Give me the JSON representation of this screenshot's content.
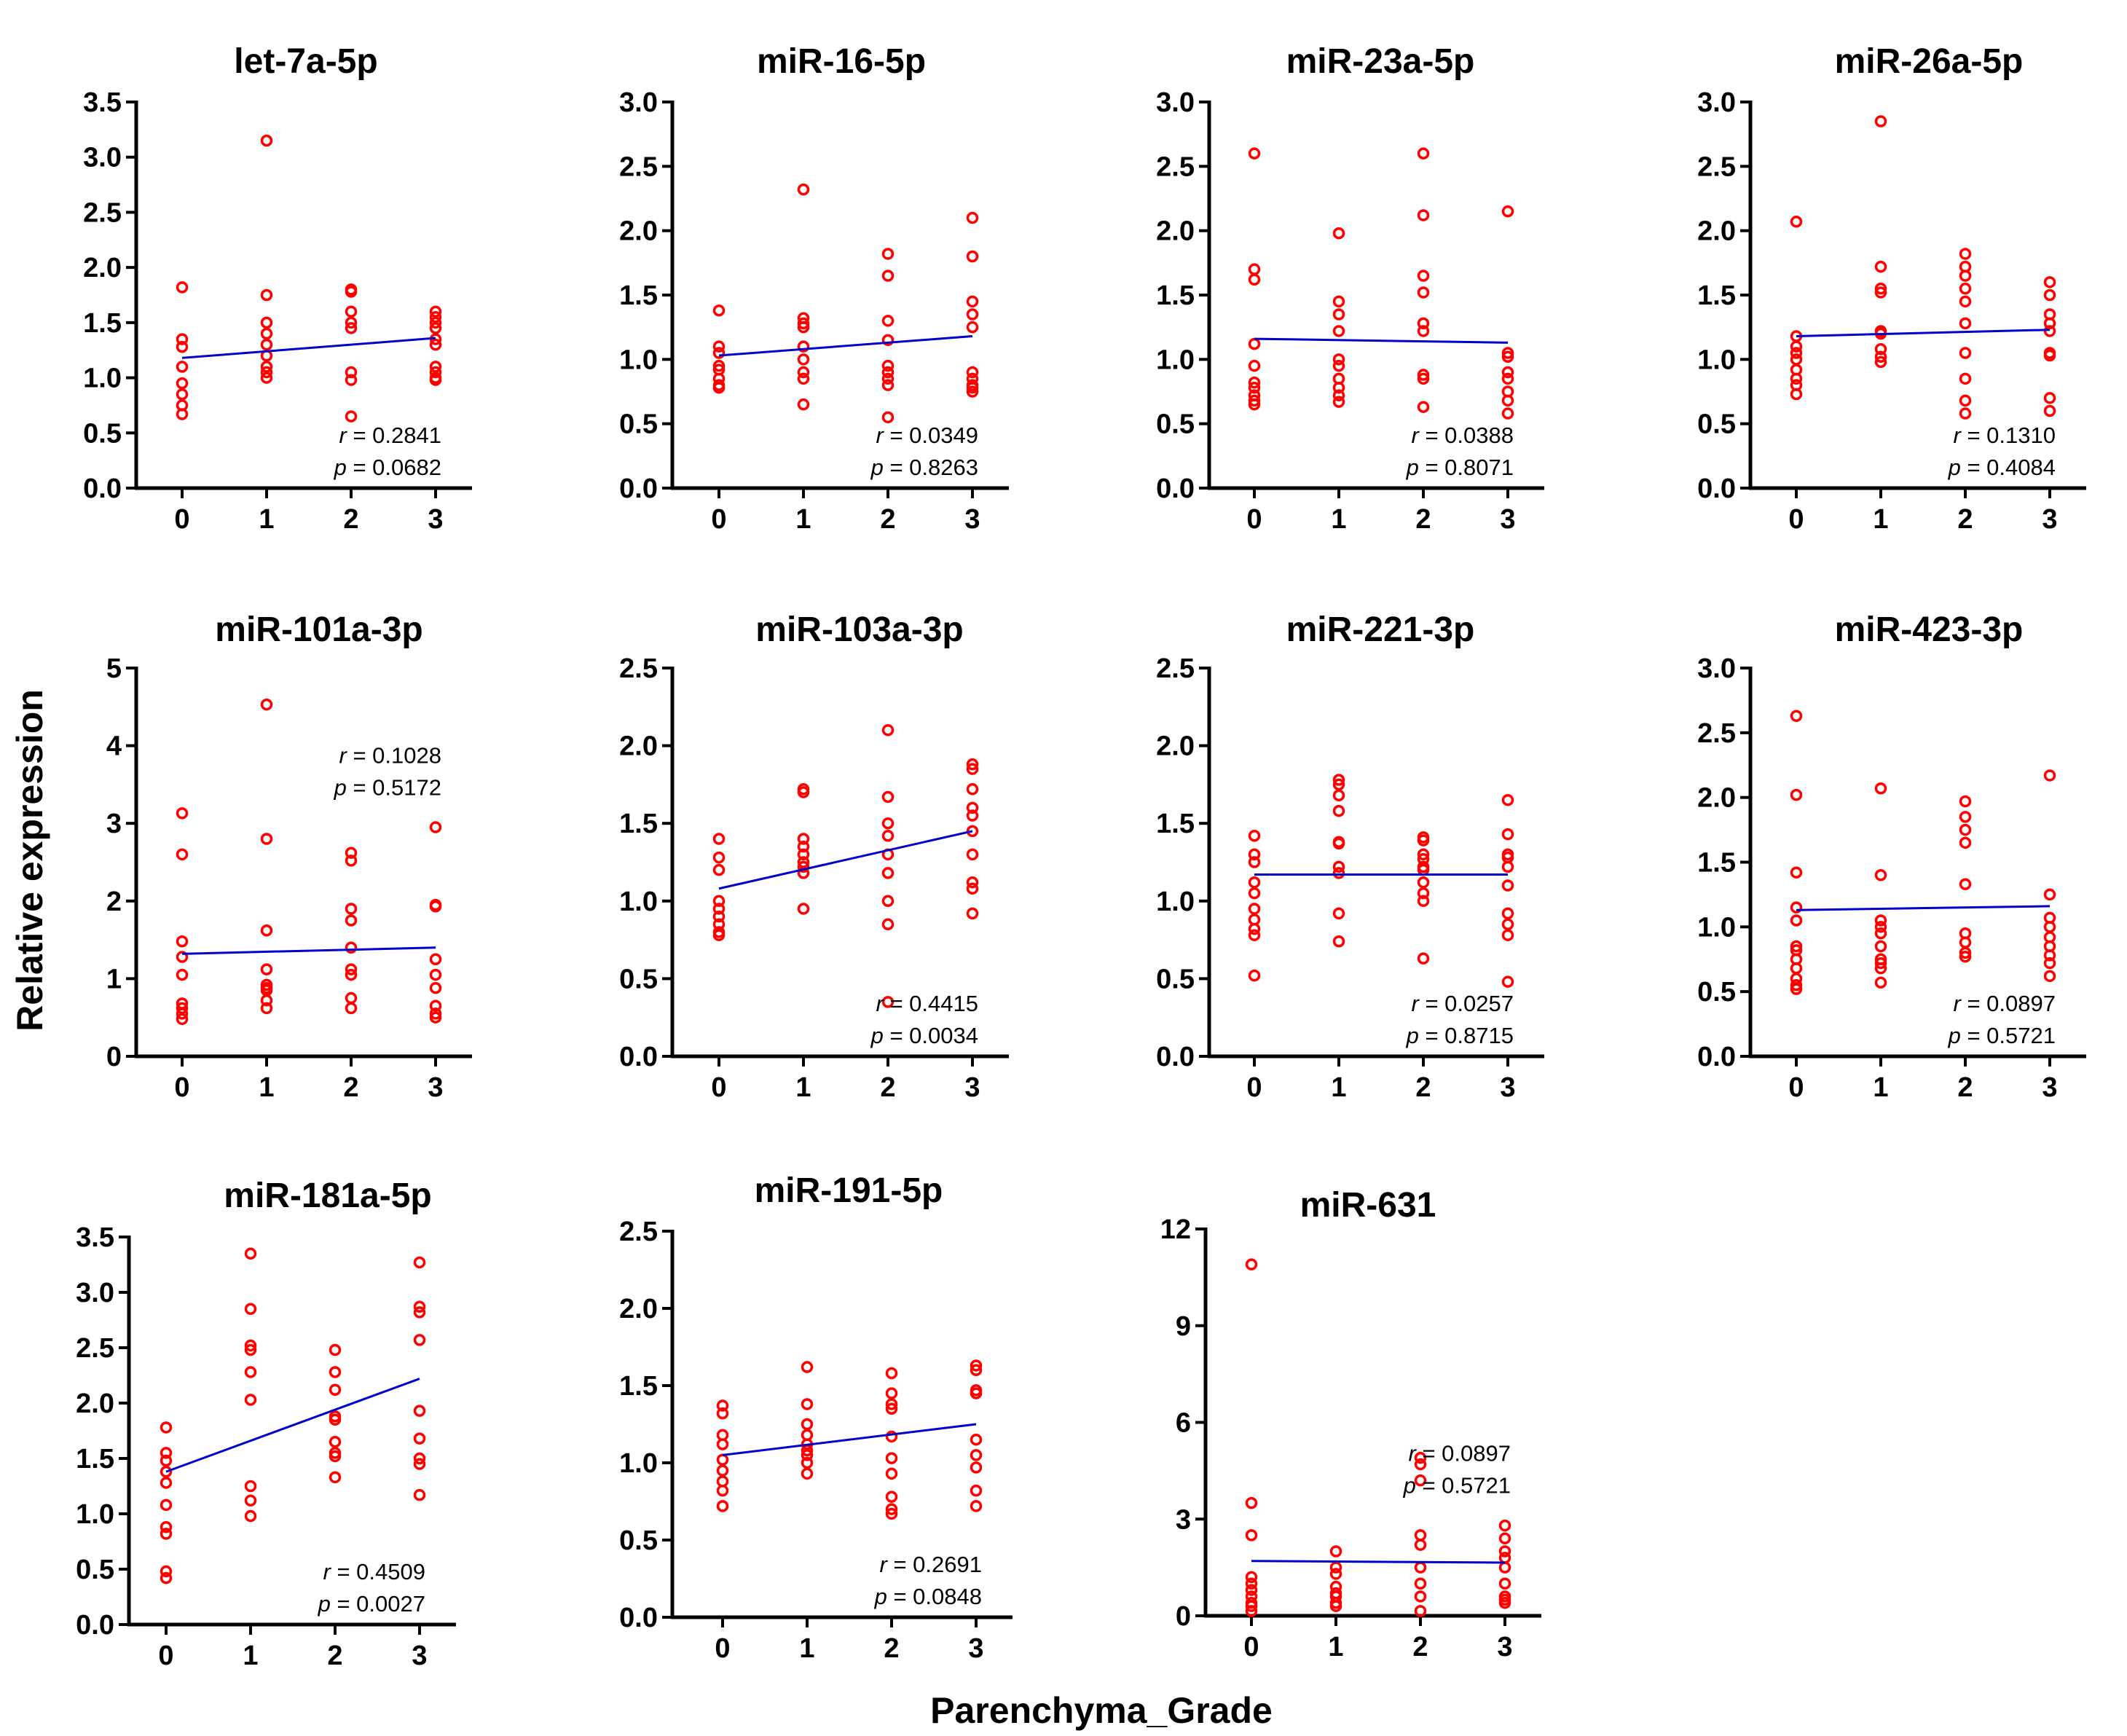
{
  "figure": {
    "xlabel": "Parenchyma_Grade",
    "ylabel": "Relative expression",
    "point_color": "#ff0000",
    "line_color": "#0000cc"
  },
  "chart_data": [
    {
      "type": "scatter",
      "title": "let-7a-5p",
      "categories": [
        "0",
        "1",
        "2",
        "3"
      ],
      "ylim": [
        0,
        3.5
      ],
      "yticks": [
        "0.0",
        "0.5",
        "1.0",
        "1.5",
        "2.0",
        "2.5",
        "3.0",
        "3.5"
      ],
      "r_label": "r",
      "r_value": "= 0.2841",
      "p_label": "p",
      "p_value": "= 0.0682",
      "stat_pos": "bottom-right",
      "fit": [
        1.18,
        1.36
      ],
      "series": [
        {
          "x": 0,
          "y": [
            1.82,
            1.35,
            1.28,
            1.1,
            0.95,
            0.85,
            0.75,
            0.67
          ]
        },
        {
          "x": 1,
          "y": [
            3.15,
            1.75,
            1.5,
            1.4,
            1.3,
            1.2,
            1.1,
            1.05,
            1.0
          ]
        },
        {
          "x": 2,
          "y": [
            1.8,
            1.78,
            1.6,
            1.5,
            1.45,
            1.05,
            0.98,
            0.65
          ]
        },
        {
          "x": 3,
          "y": [
            1.6,
            1.55,
            1.5,
            1.45,
            1.35,
            1.3,
            1.1,
            1.05,
            1.0,
            0.98
          ]
        }
      ]
    },
    {
      "type": "scatter",
      "title": "miR-16-5p",
      "categories": [
        "0",
        "1",
        "2",
        "3"
      ],
      "ylim": [
        0,
        3.0
      ],
      "yticks": [
        "0.0",
        "0.5",
        "1.0",
        "1.5",
        "2.0",
        "2.5",
        "3.0"
      ],
      "r_label": "r",
      "r_value": "= 0.0349",
      "p_label": "p",
      "p_value": "= 0.8263",
      "stat_pos": "bottom-right",
      "fit": [
        1.03,
        1.18
      ],
      "series": [
        {
          "x": 0,
          "y": [
            1.38,
            1.1,
            1.05,
            0.95,
            0.92,
            0.85,
            0.8,
            0.78
          ]
        },
        {
          "x": 1,
          "y": [
            2.32,
            1.32,
            1.28,
            1.25,
            1.1,
            1.0,
            0.9,
            0.85,
            0.65
          ]
        },
        {
          "x": 2,
          "y": [
            1.82,
            1.65,
            1.3,
            1.15,
            0.95,
            0.9,
            0.85,
            0.8,
            0.55
          ]
        },
        {
          "x": 3,
          "y": [
            2.1,
            1.8,
            1.45,
            1.35,
            1.25,
            0.9,
            0.85,
            0.8,
            0.78,
            0.75
          ]
        }
      ]
    },
    {
      "type": "scatter",
      "title": "miR-23a-5p",
      "categories": [
        "0",
        "1",
        "2",
        "3"
      ],
      "ylim": [
        0,
        3.0
      ],
      "yticks": [
        "0.0",
        "0.5",
        "1.0",
        "1.5",
        "2.0",
        "2.5",
        "3.0"
      ],
      "r_label": "r",
      "r_value": "= 0.0388",
      "p_label": "p",
      "p_value": "= 0.8071",
      "stat_pos": "bottom-right",
      "fit": [
        1.16,
        1.13
      ],
      "series": [
        {
          "x": 0,
          "y": [
            2.6,
            1.7,
            1.62,
            1.12,
            0.95,
            0.82,
            0.78,
            0.72,
            0.68,
            0.65
          ]
        },
        {
          "x": 1,
          "y": [
            1.98,
            1.45,
            1.35,
            1.22,
            1.0,
            0.95,
            0.85,
            0.78,
            0.72,
            0.67
          ]
        },
        {
          "x": 2,
          "y": [
            2.6,
            2.12,
            1.65,
            1.52,
            1.28,
            1.22,
            0.88,
            0.85,
            0.63
          ]
        },
        {
          "x": 3,
          "y": [
            2.15,
            1.05,
            1.02,
            0.9,
            0.85,
            0.75,
            0.68,
            0.58
          ]
        }
      ]
    },
    {
      "type": "scatter",
      "title": "miR-26a-5p",
      "categories": [
        "0",
        "1",
        "2",
        "3"
      ],
      "ylim": [
        0,
        3.0
      ],
      "yticks": [
        "0.0",
        "0.5",
        "1.0",
        "1.5",
        "2.0",
        "2.5",
        "3.0"
      ],
      "r_label": "r",
      "r_value": "= 0.1310",
      "p_label": "p",
      "p_value": "= 0.4084",
      "stat_pos": "bottom-right",
      "fit": [
        1.18,
        1.23
      ],
      "series": [
        {
          "x": 0,
          "y": [
            2.07,
            1.18,
            1.1,
            1.05,
            1.0,
            0.92,
            0.85,
            0.8,
            0.73
          ]
        },
        {
          "x": 1,
          "y": [
            2.85,
            1.72,
            1.55,
            1.52,
            1.22,
            1.2,
            1.08,
            1.02,
            0.98
          ]
        },
        {
          "x": 2,
          "y": [
            1.82,
            1.72,
            1.65,
            1.55,
            1.45,
            1.28,
            1.05,
            0.85,
            0.68,
            0.58
          ]
        },
        {
          "x": 3,
          "y": [
            1.6,
            1.5,
            1.35,
            1.28,
            1.22,
            1.05,
            1.03,
            0.7,
            0.6
          ]
        }
      ]
    },
    {
      "type": "scatter",
      "title": "miR-101a-3p",
      "categories": [
        "0",
        "1",
        "2",
        "3"
      ],
      "ylim": [
        0,
        5
      ],
      "yticks": [
        "0",
        "1",
        "2",
        "3",
        "4",
        "5"
      ],
      "r_label": "r",
      "r_value": "= 0.1028",
      "p_label": "p",
      "p_value": "= 0.5172",
      "stat_pos": "top-right",
      "fit": [
        1.32,
        1.4
      ],
      "series": [
        {
          "x": 0,
          "y": [
            3.13,
            2.6,
            1.48,
            1.28,
            1.05,
            0.68,
            0.62,
            0.55,
            0.48
          ]
        },
        {
          "x": 1,
          "y": [
            4.53,
            2.8,
            1.62,
            1.12,
            0.92,
            0.88,
            0.85,
            0.72,
            0.62
          ]
        },
        {
          "x": 2,
          "y": [
            2.62,
            2.52,
            1.9,
            1.75,
            1.4,
            1.12,
            1.05,
            0.75,
            0.62
          ]
        },
        {
          "x": 3,
          "y": [
            2.95,
            1.95,
            1.93,
            1.25,
            1.05,
            0.88,
            0.65,
            0.55,
            0.5
          ]
        }
      ]
    },
    {
      "type": "scatter",
      "title": "miR-103a-3p",
      "categories": [
        "0",
        "1",
        "2",
        "3"
      ],
      "ylim": [
        0,
        2.5
      ],
      "yticks": [
        "0.0",
        "0.5",
        "1.0",
        "1.5",
        "2.0",
        "2.5"
      ],
      "r_label": "r",
      "r_value": "= 0.4415",
      "p_label": "p",
      "p_value": "= 0.0034",
      "stat_pos": "bottom-right",
      "fit": [
        1.08,
        1.45
      ],
      "series": [
        {
          "x": 0,
          "y": [
            1.4,
            1.28,
            1.2,
            1.0,
            0.95,
            0.9,
            0.85,
            0.8,
            0.78
          ]
        },
        {
          "x": 1,
          "y": [
            1.72,
            1.7,
            1.4,
            1.35,
            1.3,
            1.25,
            1.22,
            1.18,
            0.95
          ]
        },
        {
          "x": 2,
          "y": [
            2.1,
            1.67,
            1.5,
            1.42,
            1.3,
            1.18,
            1.0,
            0.85,
            0.35
          ]
        },
        {
          "x": 3,
          "y": [
            1.88,
            1.85,
            1.72,
            1.6,
            1.55,
            1.45,
            1.3,
            1.12,
            1.08,
            0.92
          ]
        }
      ]
    },
    {
      "type": "scatter",
      "title": "miR-221-3p",
      "categories": [
        "0",
        "1",
        "2",
        "3"
      ],
      "ylim": [
        0,
        2.5
      ],
      "yticks": [
        "0.0",
        "0.5",
        "1.0",
        "1.5",
        "2.0",
        "2.5"
      ],
      "r_label": "r",
      "r_value": "= 0.0257",
      "p_label": "p",
      "p_value": "= 0.8715",
      "stat_pos": "bottom-right",
      "fit": [
        1.17,
        1.17
      ],
      "series": [
        {
          "x": 0,
          "y": [
            1.42,
            1.3,
            1.25,
            1.12,
            1.05,
            0.95,
            0.88,
            0.82,
            0.78,
            0.52
          ]
        },
        {
          "x": 1,
          "y": [
            1.78,
            1.75,
            1.68,
            1.58,
            1.38,
            1.37,
            1.22,
            1.18,
            0.92,
            0.74
          ]
        },
        {
          "x": 2,
          "y": [
            1.41,
            1.39,
            1.3,
            1.27,
            1.22,
            1.2,
            1.12,
            1.05,
            1.0,
            0.63
          ]
        },
        {
          "x": 3,
          "y": [
            1.65,
            1.43,
            1.3,
            1.28,
            1.22,
            1.1,
            0.92,
            0.85,
            0.78,
            0.48
          ]
        }
      ]
    },
    {
      "type": "scatter",
      "title": "miR-423-3p",
      "categories": [
        "0",
        "1",
        "2",
        "3"
      ],
      "ylim": [
        0,
        3.0
      ],
      "yticks": [
        "0.0",
        "0.5",
        "1.0",
        "1.5",
        "2.0",
        "2.5",
        "3.0"
      ],
      "r_label": "r",
      "r_value": "= 0.0897",
      "p_label": "p",
      "p_value": "= 0.5721",
      "stat_pos": "bottom-right",
      "fit": [
        1.13,
        1.16
      ],
      "series": [
        {
          "x": 0,
          "y": [
            2.63,
            2.02,
            1.42,
            1.15,
            1.05,
            0.85,
            0.82,
            0.75,
            0.68,
            0.6,
            0.55,
            0.52
          ]
        },
        {
          "x": 1,
          "y": [
            2.07,
            1.4,
            1.05,
            1.0,
            0.95,
            0.85,
            0.75,
            0.72,
            0.68,
            0.57
          ]
        },
        {
          "x": 2,
          "y": [
            1.97,
            1.85,
            1.75,
            1.65,
            1.33,
            0.95,
            0.88,
            0.8,
            0.77
          ]
        },
        {
          "x": 3,
          "y": [
            2.17,
            1.25,
            1.07,
            1.0,
            0.92,
            0.85,
            0.78,
            0.72,
            0.62
          ]
        }
      ]
    },
    {
      "type": "scatter",
      "title": "miR-181a-5p",
      "categories": [
        "0",
        "1",
        "2",
        "3"
      ],
      "ylim": [
        0,
        3.5
      ],
      "yticks": [
        "0.0",
        "0.5",
        "1.0",
        "1.5",
        "2.0",
        "2.5",
        "3.0",
        "3.5"
      ],
      "r_label": "r",
      "r_value": "= 0.4509",
      "p_label": "p",
      "p_value": "= 0.0027",
      "stat_pos": "bottom-right",
      "fit": [
        1.38,
        2.22
      ],
      "series": [
        {
          "x": 0,
          "y": [
            1.78,
            1.55,
            1.48,
            1.38,
            1.28,
            1.08,
            0.88,
            0.82,
            0.48,
            0.42
          ]
        },
        {
          "x": 1,
          "y": [
            3.35,
            2.85,
            2.52,
            2.48,
            2.28,
            2.03,
            1.25,
            1.12,
            0.98
          ]
        },
        {
          "x": 2,
          "y": [
            2.48,
            2.28,
            2.12,
            1.88,
            1.85,
            1.65,
            1.55,
            1.52,
            1.33
          ]
        },
        {
          "x": 3,
          "y": [
            3.27,
            2.87,
            2.82,
            2.57,
            1.93,
            1.68,
            1.5,
            1.45,
            1.17
          ]
        }
      ]
    },
    {
      "type": "scatter",
      "title": "miR-191-5p",
      "categories": [
        "0",
        "1",
        "2",
        "3"
      ],
      "ylim": [
        0,
        2.5
      ],
      "yticks": [
        "0.0",
        "0.5",
        "1.0",
        "1.5",
        "2.0",
        "2.5"
      ],
      "r_label": "r",
      "r_value": "= 0.2691",
      "p_label": "p",
      "p_value": "= 0.0848",
      "stat_pos": "bottom-right",
      "fit": [
        1.05,
        1.25
      ],
      "series": [
        {
          "x": 0,
          "y": [
            1.37,
            1.32,
            1.18,
            1.12,
            1.02,
            0.95,
            0.88,
            0.82,
            0.72
          ]
        },
        {
          "x": 1,
          "y": [
            1.62,
            1.38,
            1.25,
            1.18,
            1.12,
            1.08,
            1.05,
            1.0,
            0.93
          ]
        },
        {
          "x": 2,
          "y": [
            1.58,
            1.45,
            1.38,
            1.35,
            1.17,
            1.03,
            0.93,
            0.78,
            0.7,
            0.67
          ]
        },
        {
          "x": 3,
          "y": [
            1.63,
            1.6,
            1.47,
            1.45,
            1.15,
            1.05,
            0.97,
            0.82,
            0.72
          ]
        }
      ]
    },
    {
      "type": "scatter",
      "title": "miR-631",
      "categories": [
        "0",
        "1",
        "2",
        "3"
      ],
      "ylim": [
        0,
        12
      ],
      "yticks": [
        "0",
        "3",
        "6",
        "9",
        "12"
      ],
      "r_label": "r",
      "r_value": "= 0.0897",
      "p_label": "p",
      "p_value": "= 0.5721",
      "stat_pos": "mid-right",
      "fit": [
        1.7,
        1.65
      ],
      "series": [
        {
          "x": 0,
          "y": [
            10.9,
            3.5,
            2.5,
            1.2,
            1.0,
            0.8,
            0.6,
            0.4,
            0.3,
            0.15
          ]
        },
        {
          "x": 1,
          "y": [
            2.0,
            1.5,
            1.3,
            0.9,
            0.7,
            0.6,
            0.4,
            0.3
          ]
        },
        {
          "x": 2,
          "y": [
            4.9,
            4.7,
            4.2,
            2.5,
            2.2,
            1.5,
            1.0,
            0.6,
            0.15
          ]
        },
        {
          "x": 3,
          "y": [
            2.8,
            2.4,
            2.0,
            1.8,
            1.5,
            1.0,
            0.6,
            0.5,
            0.4
          ]
        }
      ]
    }
  ]
}
